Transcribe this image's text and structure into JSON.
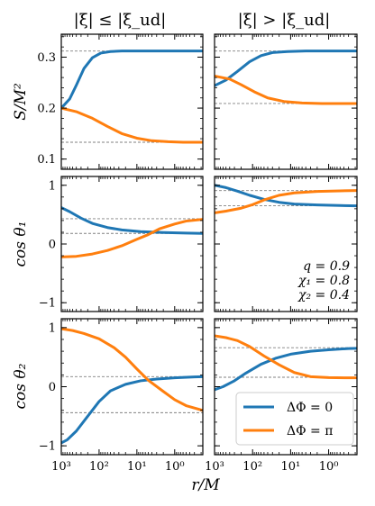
{
  "chart_data": {
    "type": "line",
    "layout": "3x2 grid of panels, shared x-axis per column, shared y-axis per row",
    "columns": [
      {
        "title": "|ξ| ≤ |ξ_ud|"
      },
      {
        "title": "|ξ| > |ξ_ud|"
      }
    ],
    "rows": [
      {
        "ylabel": "S/M²",
        "ylim": [
          0.08,
          0.345
        ],
        "yticks": [
          0.1,
          0.2,
          0.3
        ],
        "ytick_labels": [
          "0.1",
          "0.2",
          "0.3"
        ]
      },
      {
        "ylabel": "cos θ₁",
        "ylim": [
          -1.15,
          1.15
        ],
        "yticks": [
          -1,
          0,
          1
        ],
        "ytick_labels": [
          "−1",
          "0",
          "1"
        ]
      },
      {
        "ylabel": "cos θ₂",
        "ylim": [
          -1.15,
          1.15
        ],
        "yticks": [
          -1,
          0,
          1
        ],
        "ytick_labels": [
          "−1",
          "0",
          "1"
        ]
      }
    ],
    "xlabel": "r/M",
    "xscale": "log",
    "x_reversed": true,
    "xlim": [
      1000,
      0.18
    ],
    "xtick_values": [
      1000,
      100,
      10,
      1,
      0.1
    ],
    "xtick_labels": [
      "10³",
      "10²",
      "10¹",
      "10⁰",
      "10⁻¹"
    ],
    "colors": {
      "dphi0": "#1f77b4",
      "dphipi": "#ff7f0e",
      "reference": "#808080"
    },
    "legend": {
      "placement": "lower-right of bottom-right panel",
      "entries": [
        {
          "label": "ΔΦ = 0",
          "series": "dphi0"
        },
        {
          "label": "ΔΦ = π",
          "series": "dphipi"
        }
      ]
    },
    "annotation": {
      "panel": "row2-col2",
      "placement": "lower-right",
      "lines": [
        "q = 0.9",
        "χ₁ = 0.8",
        "χ₂ = 0.4"
      ]
    },
    "panels": [
      {
        "row": 0,
        "col": 0,
        "hlines": [
          0.312,
          0.133
        ],
        "series": [
          {
            "key": "dphi0",
            "x": [
              1000,
              600,
              400,
              250,
              150,
              90,
              50,
              25,
              10,
              3,
              1,
              0.18
            ],
            "y": [
              0.2,
              0.218,
              0.245,
              0.278,
              0.299,
              0.308,
              0.311,
              0.312,
              0.312,
              0.312,
              0.312,
              0.312
            ]
          },
          {
            "key": "dphipi",
            "x": [
              1000,
              400,
              150,
              60,
              25,
              10,
              4,
              1.5,
              0.6,
              0.18
            ],
            "y": [
              0.2,
              0.193,
              0.18,
              0.164,
              0.15,
              0.141,
              0.136,
              0.134,
              0.133,
              0.133
            ]
          }
        ]
      },
      {
        "row": 0,
        "col": 1,
        "hlines": [
          0.312,
          0.209
        ],
        "series": [
          {
            "key": "dphi0",
            "x": [
              1000,
              500,
              250,
              120,
              60,
              30,
              12,
              4,
              1,
              0.18
            ],
            "y": [
              0.244,
              0.255,
              0.272,
              0.291,
              0.303,
              0.309,
              0.311,
              0.312,
              0.312,
              0.312
            ]
          },
          {
            "key": "dphipi",
            "x": [
              1000,
              400,
              200,
              90,
              40,
              15,
              5,
              1.5,
              0.3,
              0.18
            ],
            "y": [
              0.263,
              0.257,
              0.246,
              0.232,
              0.22,
              0.213,
              0.21,
              0.209,
              0.209,
              0.209
            ]
          }
        ]
      },
      {
        "row": 1,
        "col": 0,
        "hlines": [
          0.43,
          0.18
        ],
        "series": [
          {
            "key": "dphi0",
            "x": [
              1000,
              600,
              300,
              150,
              60,
              25,
              8,
              2,
              0.5,
              0.18
            ],
            "y": [
              0.62,
              0.55,
              0.44,
              0.35,
              0.28,
              0.24,
              0.21,
              0.195,
              0.185,
              0.18
            ]
          },
          {
            "key": "dphipi",
            "x": [
              1000,
              400,
              150,
              60,
              25,
              10,
              5,
              2.5,
              1,
              0.5,
              0.18
            ],
            "y": [
              -0.22,
              -0.21,
              -0.17,
              -0.11,
              -0.03,
              0.08,
              0.16,
              0.26,
              0.34,
              0.39,
              0.42
            ]
          }
        ]
      },
      {
        "row": 1,
        "col": 1,
        "hlines": [
          0.91,
          0.65
        ],
        "series": [
          {
            "key": "dphi0",
            "x": [
              1000,
              500,
              250,
              120,
              50,
              20,
              8,
              2,
              0.5,
              0.18
            ],
            "y": [
              1.0,
              0.96,
              0.9,
              0.83,
              0.76,
              0.71,
              0.68,
              0.665,
              0.655,
              0.65
            ]
          },
          {
            "key": "dphipi",
            "x": [
              1000,
              500,
              200,
              100,
              50,
              20,
              8,
              2,
              0.5,
              0.18
            ],
            "y": [
              0.53,
              0.56,
              0.61,
              0.67,
              0.75,
              0.83,
              0.87,
              0.895,
              0.905,
              0.91
            ]
          }
        ]
      },
      {
        "row": 2,
        "col": 0,
        "hlines": [
          0.17,
          -0.44
        ],
        "series": [
          {
            "key": "dphi0",
            "x": [
              1000,
              700,
              400,
              200,
              100,
              50,
              20,
              8,
              3,
              1,
              0.3,
              0.18
            ],
            "y": [
              -0.95,
              -0.9,
              -0.75,
              -0.5,
              -0.25,
              -0.07,
              0.04,
              0.1,
              0.13,
              0.15,
              0.165,
              0.17
            ]
          },
          {
            "key": "dphipi",
            "x": [
              1000,
              500,
              250,
              100,
              40,
              20,
              10,
              5,
              2,
              1,
              0.5,
              0.18
            ],
            "y": [
              0.98,
              0.95,
              0.9,
              0.81,
              0.66,
              0.5,
              0.3,
              0.11,
              -0.08,
              -0.22,
              -0.32,
              -0.4
            ]
          }
        ]
      },
      {
        "row": 2,
        "col": 1,
        "hlines": [
          0.66,
          0.16
        ],
        "series": [
          {
            "key": "dphi0",
            "x": [
              1000,
              600,
              300,
              150,
              60,
              25,
              10,
              3,
              1,
              0.3,
              0.18
            ],
            "y": [
              -0.05,
              0.0,
              0.1,
              0.23,
              0.38,
              0.48,
              0.55,
              0.6,
              0.625,
              0.645,
              0.65
            ]
          },
          {
            "key": "dphipi",
            "x": [
              1000,
              500,
              250,
              120,
              50,
              20,
              8,
              3,
              1,
              0.3,
              0.18
            ],
            "y": [
              0.86,
              0.83,
              0.78,
              0.68,
              0.52,
              0.37,
              0.24,
              0.17,
              0.155,
              0.15,
              0.15
            ]
          }
        ]
      }
    ]
  }
}
